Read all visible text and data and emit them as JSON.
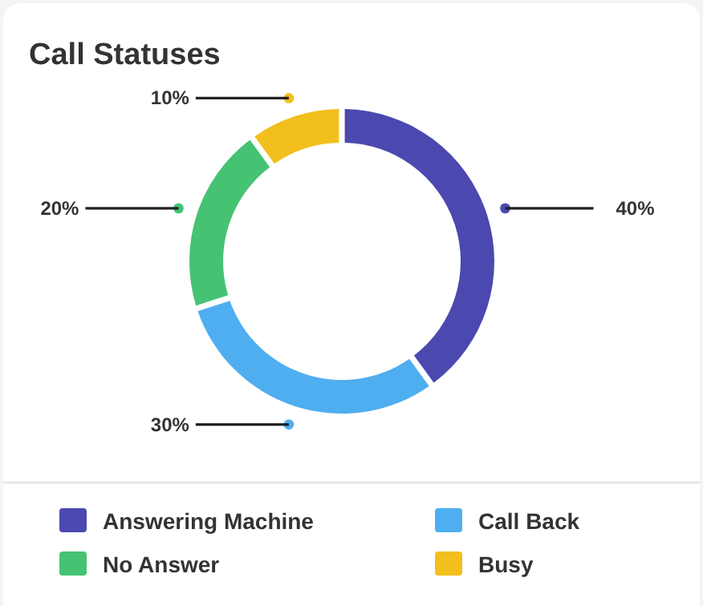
{
  "chart_data": {
    "type": "donut",
    "title": "Call Statuses",
    "categories": [
      "Answering Machine",
      "Call Back",
      "No Answer",
      "Busy"
    ],
    "values": [
      40,
      30,
      20,
      10
    ],
    "value_labels": [
      "40%",
      "30%",
      "20%",
      "10%"
    ],
    "colors": [
      "#4b48b0",
      "#4eaef0",
      "#45c373",
      "#f2bf1d"
    ],
    "legend": "bottom"
  }
}
